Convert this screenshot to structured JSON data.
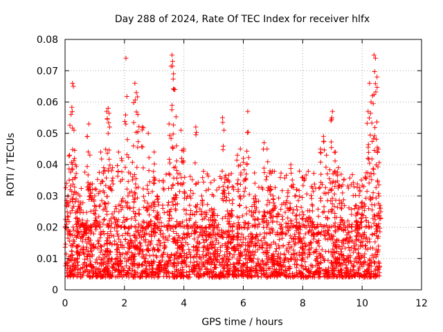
{
  "chart_data": {
    "type": "scatter",
    "title": "Day 288 of 2024, Rate Of TEC Index for receiver hlfx",
    "xlabel": "GPS time / hours",
    "ylabel": "ROTI / TECUs",
    "xlim": [
      0,
      12
    ],
    "ylim": [
      0,
      0.08
    ],
    "xticks": [
      0,
      2,
      4,
      6,
      8,
      10,
      12
    ],
    "yticks": [
      0,
      0.01,
      0.02,
      0.03,
      0.04,
      0.05,
      0.06,
      0.07,
      0.08
    ],
    "grid": true,
    "marker": "+",
    "color": "#ff0000",
    "series": [
      {
        "name": "ROTI",
        "x_range": [
          0,
          10.6
        ],
        "baseline_band": [
          0.004,
          0.02
        ],
        "points": [
          [
            0.05,
            0.034
          ],
          [
            0.1,
            0.03
          ],
          [
            0.15,
            0.043
          ],
          [
            0.2,
            0.056
          ],
          [
            0.25,
            0.066
          ],
          [
            0.28,
            0.065
          ],
          [
            0.3,
            0.051
          ],
          [
            0.35,
            0.04
          ],
          [
            0.4,
            0.025
          ],
          [
            0.5,
            0.03
          ],
          [
            0.6,
            0.021
          ],
          [
            0.7,
            0.018
          ],
          [
            0.75,
            0.049
          ],
          [
            0.8,
            0.053
          ],
          [
            0.85,
            0.032
          ],
          [
            1.0,
            0.03
          ],
          [
            1.2,
            0.044
          ],
          [
            1.3,
            0.039
          ],
          [
            1.4,
            0.057
          ],
          [
            1.45,
            0.058
          ],
          [
            1.5,
            0.052
          ],
          [
            1.6,
            0.039
          ],
          [
            1.8,
            0.044
          ],
          [
            1.9,
            0.042
          ],
          [
            2.05,
            0.074
          ],
          [
            2.1,
            0.048
          ],
          [
            2.3,
            0.046
          ],
          [
            2.35,
            0.066
          ],
          [
            2.4,
            0.063
          ],
          [
            2.45,
            0.056
          ],
          [
            2.6,
            0.052
          ],
          [
            2.8,
            0.05
          ],
          [
            3.0,
            0.044
          ],
          [
            3.1,
            0.03
          ],
          [
            3.3,
            0.035
          ],
          [
            3.5,
            0.053
          ],
          [
            3.6,
            0.075
          ],
          [
            3.62,
            0.073
          ],
          [
            3.65,
            0.069
          ],
          [
            3.7,
            0.064
          ],
          [
            3.75,
            0.046
          ],
          [
            3.9,
            0.051
          ],
          [
            4.0,
            0.045
          ],
          [
            4.2,
            0.03
          ],
          [
            4.4,
            0.052
          ],
          [
            4.6,
            0.03
          ],
          [
            5.0,
            0.03
          ],
          [
            5.3,
            0.055
          ],
          [
            5.35,
            0.051
          ],
          [
            5.5,
            0.035
          ],
          [
            5.8,
            0.043
          ],
          [
            5.9,
            0.045
          ],
          [
            6.0,
            0.042
          ],
          [
            6.1,
            0.037
          ],
          [
            6.15,
            0.057
          ],
          [
            6.4,
            0.03
          ],
          [
            6.7,
            0.047
          ],
          [
            6.8,
            0.045
          ],
          [
            6.9,
            0.038
          ],
          [
            7.0,
            0.03
          ],
          [
            7.5,
            0.031
          ],
          [
            7.6,
            0.04
          ],
          [
            8.0,
            0.036
          ],
          [
            8.3,
            0.033
          ],
          [
            8.6,
            0.045
          ],
          [
            8.7,
            0.049
          ],
          [
            8.8,
            0.043
          ],
          [
            8.95,
            0.054
          ],
          [
            9.0,
            0.057
          ],
          [
            9.1,
            0.044
          ],
          [
            9.2,
            0.039
          ],
          [
            9.3,
            0.028
          ],
          [
            9.8,
            0.027
          ],
          [
            10.0,
            0.028
          ],
          [
            10.1,
            0.036
          ],
          [
            10.2,
            0.057
          ],
          [
            10.25,
            0.066
          ],
          [
            10.3,
            0.06
          ],
          [
            10.35,
            0.062
          ],
          [
            10.4,
            0.075
          ],
          [
            10.45,
            0.074
          ],
          [
            10.5,
            0.068
          ],
          [
            10.55,
            0.045
          ],
          [
            10.6,
            0.027
          ]
        ]
      }
    ]
  }
}
